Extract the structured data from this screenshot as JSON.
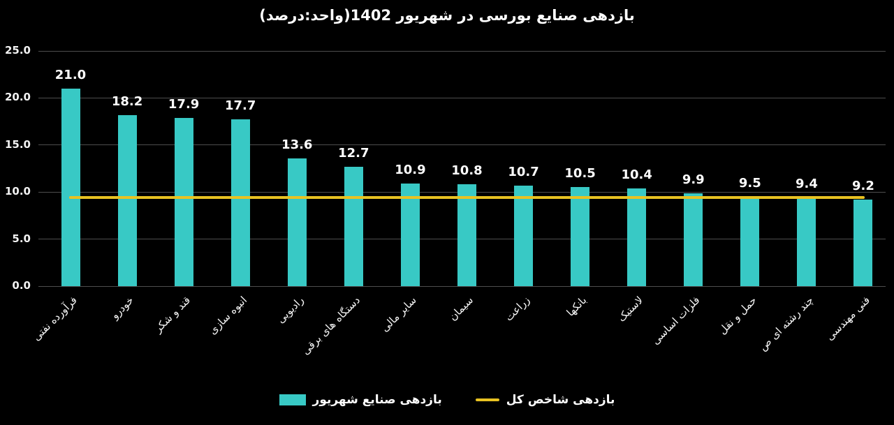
{
  "chart_data": {
    "type": "bar",
    "title": "بازدهی صنایع بورسی در شهریور 1402(واحد:درصد)",
    "categories": [
      "فرآورده نفتی",
      "خودرو",
      "قند و شکر",
      "انبوه سازی",
      "رادیویی",
      "دستگاه های برقی",
      "سایر مالی",
      "سیمان",
      "زراعت",
      "بانکها",
      "لاستیک",
      "فلزات اساسی",
      "حمل و نقل",
      "چند رشته ای ص",
      "فنی مهندسی"
    ],
    "series": [
      {
        "name": "بازدهی صنایع شهریور",
        "type": "bar",
        "values": [
          21.0,
          18.2,
          17.9,
          17.7,
          13.6,
          12.7,
          10.9,
          10.8,
          10.7,
          10.5,
          10.4,
          9.9,
          9.5,
          9.4,
          9.2
        ]
      },
      {
        "name": "بازدهی شاخص کل",
        "type": "line",
        "value": 9.4
      }
    ],
    "ylim": [
      0,
      25
    ],
    "y_ticks": [
      0,
      5,
      10,
      15,
      20,
      25
    ],
    "y_tick_labels": [
      "0.0",
      "5.0",
      "10.0",
      "15.0",
      "20.0",
      "25.0"
    ],
    "grid": "horizontal",
    "legend_position": "bottom",
    "colors": {
      "background": "#000000",
      "bar": "#38c9c5",
      "line": "#e8c222",
      "grid": "#4e4e4e",
      "text": "#ffffff"
    }
  }
}
